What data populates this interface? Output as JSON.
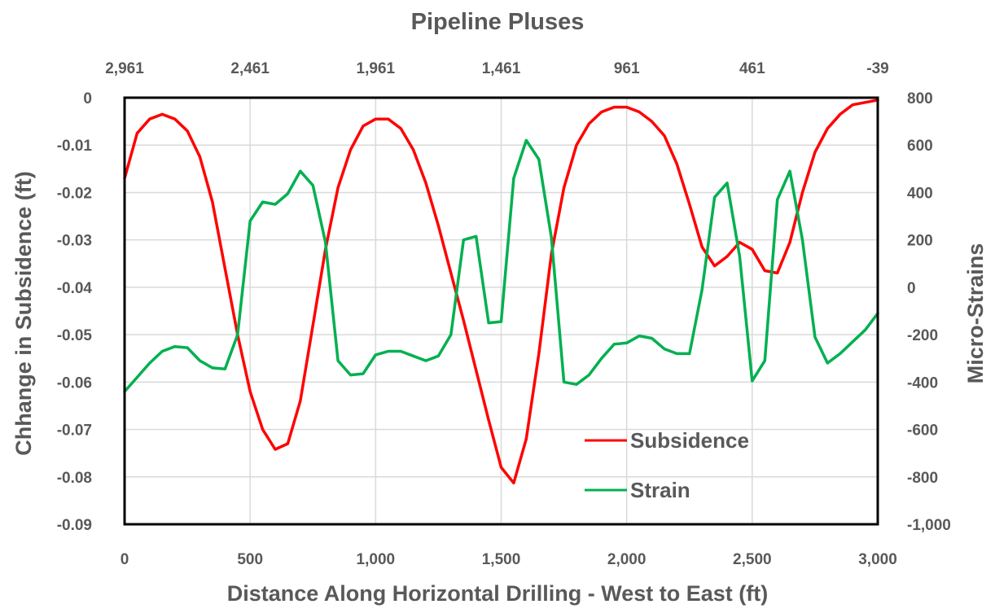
{
  "chart_data": {
    "type": "line",
    "title": "Pipeline Pluses",
    "xlabel": "Distance Along Horizontal Drilling - West to East (ft)",
    "ylabel": "Chhange in Subsidence (ft)",
    "y2label": "Micro-Strains",
    "xlim": [
      0,
      3000
    ],
    "ylim": [
      -0.09,
      0
    ],
    "y2lim": [
      -1000,
      800
    ],
    "grid": true,
    "legend_position": "bottom-right",
    "x_ticks": [
      "0",
      "500",
      "1,000",
      "1,500",
      "2,000",
      "2,500",
      "3,000"
    ],
    "x2_ticks": [
      "2,961",
      "2,461",
      "1,961",
      "1,461",
      "961",
      "461",
      "-39"
    ],
    "y_ticks": [
      "0",
      "-0.01",
      "-0.02",
      "-0.03",
      "-0.04",
      "-0.05",
      "-0.06",
      "-0.07",
      "-0.08",
      "-0.09"
    ],
    "y2_ticks": [
      "800",
      "600",
      "400",
      "200",
      "0",
      "-200",
      "-400",
      "-600",
      "-800",
      "-1,000"
    ],
    "x": [
      0,
      50,
      100,
      150,
      200,
      250,
      300,
      350,
      400,
      450,
      500,
      550,
      600,
      650,
      700,
      750,
      800,
      850,
      900,
      950,
      1000,
      1050,
      1100,
      1150,
      1200,
      1250,
      1300,
      1350,
      1400,
      1450,
      1500,
      1550,
      1600,
      1650,
      1700,
      1750,
      1800,
      1850,
      1900,
      1950,
      2000,
      2050,
      2100,
      2150,
      2200,
      2250,
      2300,
      2350,
      2400,
      2450,
      2500,
      2550,
      2600,
      2650,
      2700,
      2750,
      2800,
      2850,
      2900,
      2950,
      3000
    ],
    "series": [
      {
        "name": "Subsidence",
        "axis": "left",
        "color": "#ff0000",
        "values": [
          -0.017,
          -0.0075,
          -0.0045,
          -0.0035,
          -0.0045,
          -0.007,
          -0.0125,
          -0.022,
          -0.036,
          -0.05,
          -0.062,
          -0.07,
          -0.0742,
          -0.073,
          -0.064,
          -0.048,
          -0.032,
          -0.019,
          -0.011,
          -0.006,
          -0.0045,
          -0.0045,
          -0.0065,
          -0.011,
          -0.018,
          -0.027,
          -0.037,
          -0.047,
          -0.0575,
          -0.068,
          -0.078,
          -0.0813,
          -0.072,
          -0.054,
          -0.033,
          -0.019,
          -0.01,
          -0.0055,
          -0.003,
          -0.002,
          -0.002,
          -0.003,
          -0.005,
          -0.008,
          -0.014,
          -0.0225,
          -0.0315,
          -0.0355,
          -0.0335,
          -0.0305,
          -0.032,
          -0.0365,
          -0.037,
          -0.0305,
          -0.02,
          -0.0115,
          -0.0065,
          -0.0035,
          -0.0015,
          -0.001,
          -0.0005
        ]
      },
      {
        "name": "Strain",
        "axis": "right",
        "color": "#00b050",
        "values": [
          -440,
          -380,
          -320,
          -270,
          -250,
          -255,
          -310,
          -340,
          -345,
          -200,
          280,
          360,
          350,
          395,
          490,
          430,
          190,
          -310,
          -370,
          -365,
          -285,
          -270,
          -270,
          -290,
          -310,
          -290,
          -200,
          200,
          215,
          -150,
          -145,
          460,
          620,
          540,
          210,
          -400,
          -410,
          -370,
          -300,
          -240,
          -235,
          -205,
          -215,
          -260,
          -280,
          -280,
          -10,
          380,
          440,
          130,
          -395,
          -310,
          370,
          490,
          200,
          -210,
          -320,
          -280,
          -230,
          -180,
          -110
        ]
      }
    ]
  }
}
